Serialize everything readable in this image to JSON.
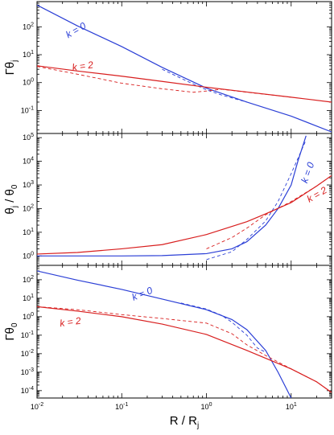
{
  "colors": {
    "k0": "#2b3fd6",
    "k2": "#d81e1e",
    "axis": "#000000"
  },
  "x_axis": {
    "label": "R / R",
    "label_sub": "j",
    "scale": "log",
    "range": [
      0.01,
      30
    ],
    "tick_labels": [
      {
        "value": 0.01,
        "base": "10",
        "exp": "-2"
      },
      {
        "value": 0.1,
        "base": "10",
        "exp": "-1"
      },
      {
        "value": 1,
        "base": "10",
        "exp": "0"
      },
      {
        "value": 10,
        "base": "10",
        "exp": "1"
      }
    ]
  },
  "chart_data": [
    {
      "type": "line",
      "panel": "top",
      "ylabel": "Γθ",
      "ylabel_sub": "j",
      "yscale": "log",
      "ylim": [
        0.015,
        800
      ],
      "y_ticks": [
        {
          "value": 0.1,
          "exp": "-1"
        },
        {
          "value": 1,
          "exp": "0"
        },
        {
          "value": 10,
          "exp": "1"
        },
        {
          "value": 100,
          "exp": "2"
        }
      ],
      "annotations": [
        {
          "text": "k = 0",
          "series": "k0",
          "x": 0.03,
          "y": 60,
          "angle": -30
        },
        {
          "text": "k = 2",
          "series": "k2",
          "x": 0.035,
          "y": 3.0,
          "angle": -8
        }
      ],
      "series": [
        {
          "key": "k0",
          "style": "solid",
          "x": [
            0.01,
            0.03,
            0.1,
            0.3,
            1,
            3,
            10,
            30
          ],
          "y": [
            600,
            108,
            19.5,
            3.5,
            0.63,
            0.2,
            0.063,
            0.017
          ]
        },
        {
          "key": "k0",
          "style": "dashed",
          "x": [
            0.3,
            0.6,
            1,
            1.5,
            3
          ],
          "y": [
            3.0,
            1.1,
            0.55,
            0.36,
            0.2
          ]
        },
        {
          "key": "k2",
          "style": "solid",
          "x": [
            0.01,
            0.03,
            0.1,
            0.3,
            1,
            3,
            10,
            30
          ],
          "y": [
            4.0,
            2.6,
            1.7,
            1.1,
            0.68,
            0.46,
            0.3,
            0.2
          ]
        },
        {
          "key": "k2",
          "style": "dashed",
          "x": [
            0.01,
            0.03,
            0.1,
            0.3,
            0.7,
            1,
            1.5,
            3,
            10
          ],
          "y": [
            3.8,
            2.0,
            0.95,
            0.6,
            0.45,
            0.5,
            0.58,
            0.45,
            0.3
          ]
        }
      ]
    },
    {
      "type": "line",
      "panel": "middle",
      "ylabel": "θ",
      "ylabel_sub": "j",
      "ylabel_tail": " / θ",
      "ylabel_tail_sub": "0",
      "yscale": "log",
      "ylim": [
        0.4,
        150000
      ],
      "y_ticks": [
        {
          "value": 1,
          "exp": "0"
        },
        {
          "value": 10,
          "exp": "1"
        },
        {
          "value": 100,
          "exp": "2"
        },
        {
          "value": 1000,
          "exp": "3"
        },
        {
          "value": 10000,
          "exp": "4"
        },
        {
          "value": 100000,
          "exp": "5"
        }
      ],
      "annotations": [
        {
          "text": "k = 0",
          "series": "k0",
          "x": 17,
          "y": 3000,
          "angle": -70
        },
        {
          "text": "k = 2",
          "series": "k2",
          "x": 21,
          "y": 300,
          "angle": -30
        }
      ],
      "series": [
        {
          "key": "k0",
          "style": "solid",
          "x": [
            0.01,
            0.1,
            0.3,
            1,
            2,
            3,
            5,
            7,
            10,
            12,
            15
          ],
          "y": [
            1.0,
            1.0,
            1.03,
            1.25,
            2.0,
            4.0,
            20,
            100,
            1000,
            10000,
            120000
          ]
        },
        {
          "key": "k0",
          "style": "dashed",
          "x": [
            1,
            2,
            3,
            5,
            7,
            10,
            15
          ],
          "y": [
            0.7,
            1.5,
            5,
            30,
            200,
            3000,
            80000
          ]
        },
        {
          "key": "k2",
          "style": "solid",
          "x": [
            0.01,
            0.03,
            0.1,
            0.3,
            1,
            3,
            5,
            10,
            20,
            30
          ],
          "y": [
            1.2,
            1.4,
            2.0,
            3.0,
            8.0,
            28,
            60,
            180,
            900,
            2500
          ]
        },
        {
          "key": "k2",
          "style": "dashed",
          "x": [
            1,
            2,
            3,
            5,
            10,
            20,
            30
          ],
          "y": [
            2.0,
            6,
            15,
            55,
            200,
            900,
            2500
          ]
        }
      ]
    },
    {
      "type": "line",
      "panel": "bottom",
      "ylabel": "Γθ",
      "ylabel_sub": "0",
      "yscale": "log",
      "ylim": [
        4e-05,
        600
      ],
      "y_ticks": [
        {
          "value": 0.0001,
          "exp": "-4"
        },
        {
          "value": 0.001,
          "exp": "-3"
        },
        {
          "value": 0.01,
          "exp": "-2"
        },
        {
          "value": 0.1,
          "exp": "-1"
        },
        {
          "value": 1,
          "exp": "0"
        },
        {
          "value": 10,
          "exp": "1"
        },
        {
          "value": 100,
          "exp": "2"
        }
      ],
      "annotations": [
        {
          "text": "k = 0",
          "series": "k0",
          "x": 0.18,
          "y": 12,
          "angle": -22
        },
        {
          "text": "k = 2",
          "series": "k2",
          "x": 0.025,
          "y": 0.35,
          "angle": -8
        }
      ],
      "series": [
        {
          "key": "k0",
          "style": "solid",
          "x": [
            0.01,
            0.03,
            0.1,
            0.3,
            1,
            2,
            3,
            5,
            7,
            10
          ],
          "y": [
            300,
            95,
            30,
            9,
            2.4,
            0.7,
            0.2,
            0.015,
            0.001,
            4e-05
          ]
        },
        {
          "key": "k0",
          "style": "dashed",
          "x": [
            0.5,
            1,
            1.5,
            2,
            3,
            4,
            5
          ],
          "y": [
            5.5,
            2.6,
            1.2,
            0.5,
            0.1,
            0.02,
            0.012
          ]
        },
        {
          "key": "k2",
          "style": "solid",
          "x": [
            0.01,
            0.03,
            0.1,
            0.3,
            1,
            3,
            10,
            20,
            30
          ],
          "y": [
            3.5,
            2.0,
            1.0,
            0.4,
            0.11,
            0.015,
            0.0015,
            0.0003,
            8e-05
          ]
        },
        {
          "key": "k2",
          "style": "dashed",
          "x": [
            0.01,
            0.03,
            0.1,
            0.3,
            1,
            2,
            3,
            5,
            10,
            20,
            30
          ],
          "y": [
            3.5,
            2.4,
            1.3,
            0.8,
            0.45,
            0.12,
            0.03,
            0.008,
            0.0015,
            0.0003,
            8e-05
          ]
        }
      ]
    }
  ]
}
